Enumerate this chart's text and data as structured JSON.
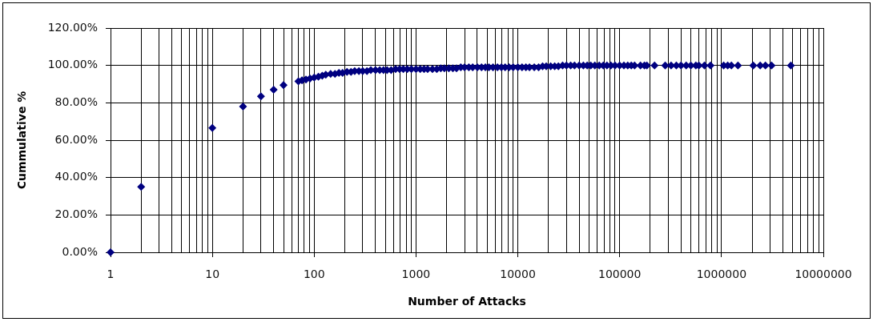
{
  "chart_data": {
    "type": "scatter",
    "xlabel": "Number of Attacks",
    "ylabel": "Cummulative %",
    "x": [
      1,
      2,
      10,
      20,
      30,
      40,
      50,
      70,
      76,
      83,
      91,
      100,
      110,
      120,
      130,
      145,
      160,
      175,
      190,
      210,
      230,
      250,
      275,
      300,
      330,
      360,
      400,
      440,
      480,
      520,
      570,
      630,
      690,
      750,
      820,
      900,
      1000,
      1100,
      1200,
      1300,
      1450,
      1600,
      1750,
      1900,
      2100,
      2300,
      2500,
      2750,
      3000,
      3300,
      3600,
      4000,
      4400,
      4800,
      5200,
      5700,
      6300,
      6900,
      7500,
      8200,
      9000,
      10000,
      11000,
      12000,
      13000,
      14500,
      16000,
      17500,
      19000,
      21000,
      23000,
      25000,
      27500,
      30000,
      33000,
      36000,
      40000,
      44000,
      48000,
      52000,
      57000,
      63000,
      69000,
      75000,
      82000,
      90000,
      100000,
      110000,
      120000,
      130000,
      140000,
      160000,
      175000,
      185000,
      220000,
      280000,
      320000,
      360000,
      400000,
      450000,
      500000,
      560000,
      600000,
      680000,
      780000,
      1050000,
      1150000,
      1250000,
      1450000,
      2050000,
      2400000,
      2700000,
      3100000,
      4800000
    ],
    "values": [
      0,
      35,
      66.5,
      78,
      83.5,
      87,
      89.5,
      91.5,
      92,
      92.5,
      93,
      93.5,
      94,
      94.5,
      95,
      95.5,
      95.5,
      96,
      96,
      96.5,
      96.5,
      97,
      97,
      97,
      97,
      97.5,
      97.5,
      97.5,
      97.5,
      97.5,
      97.5,
      98,
      98,
      98,
      98,
      98,
      98,
      98,
      98,
      98,
      98,
      98,
      98.5,
      98.5,
      98.5,
      98.5,
      98.5,
      99,
      99,
      99,
      99,
      99,
      99,
      99,
      99,
      99,
      99,
      99,
      99,
      99,
      99,
      99,
      99,
      99,
      99,
      99,
      99,
      99.5,
      99.5,
      99.5,
      99.5,
      99.5,
      100,
      100,
      100,
      100,
      100,
      100,
      100,
      100,
      100,
      100,
      100,
      100,
      100,
      100,
      100,
      100,
      100,
      100,
      100,
      100,
      100,
      100,
      100,
      100,
      100,
      100,
      100,
      100,
      100,
      100,
      100,
      100,
      100,
      100,
      100,
      100,
      100,
      100,
      100,
      100,
      100,
      100
    ],
    "color": "#000080",
    "marker": "diamond",
    "log": "x",
    "grid": true,
    "xlim": [
      1,
      10000000
    ],
    "ylim": [
      0,
      120
    ],
    "xticks": [
      1,
      {
        "value": 2,
        "label": null
      },
      {
        "value": 3,
        "label": null
      },
      {
        "value": 4,
        "label": null
      },
      {
        "value": 5,
        "label": null
      },
      {
        "value": 6,
        "label": null
      },
      {
        "value": 7,
        "label": null
      },
      {
        "value": 8,
        "label": null
      },
      {
        "value": 9,
        "label": null
      },
      10,
      {
        "value": 20,
        "label": null
      },
      {
        "value": 30,
        "label": null
      },
      {
        "value": 40,
        "label": null
      },
      {
        "value": 50,
        "label": null
      },
      {
        "value": 60,
        "label": null
      },
      {
        "value": 70,
        "label": null
      },
      {
        "value": 80,
        "label": null
      },
      {
        "value": 90,
        "label": null
      },
      100,
      {
        "value": 200,
        "label": null
      },
      {
        "value": 300,
        "label": null
      },
      {
        "value": 400,
        "label": null
      },
      {
        "value": 500,
        "label": null
      },
      {
        "value": 600,
        "label": null
      },
      {
        "value": 700,
        "label": null
      },
      {
        "value": 800,
        "label": null
      },
      {
        "value": 900,
        "label": null
      },
      1000,
      {
        "value": 2000,
        "label": null
      },
      {
        "value": 3000,
        "label": null
      },
      {
        "value": 4000,
        "label": null
      },
      {
        "value": 5000,
        "label": null
      },
      {
        "value": 6000,
        "label": null
      },
      {
        "value": 7000,
        "label": null
      },
      {
        "value": 8000,
        "label": null
      },
      {
        "value": 9000,
        "label": null
      },
      10000,
      {
        "value": 20000,
        "label": null
      },
      {
        "value": 30000,
        "label": null
      },
      {
        "value": 40000,
        "label": null
      },
      {
        "value": 50000,
        "label": null
      },
      {
        "value": 60000,
        "label": null
      },
      {
        "value": 70000,
        "label": null
      },
      {
        "value": 80000,
        "label": null
      },
      {
        "value": 90000,
        "label": null
      },
      100000,
      {
        "value": 200000,
        "label": null
      },
      {
        "value": 300000,
        "label": null
      },
      {
        "value": 400000,
        "label": null
      },
      {
        "value": 500000,
        "label": null
      },
      {
        "value": 600000,
        "label": null
      },
      {
        "value": 700000,
        "label": null
      },
      {
        "value": 800000,
        "label": null
      },
      {
        "value": 900000,
        "label": null
      },
      1000000,
      {
        "value": 2000000,
        "label": null
      },
      {
        "value": 3000000,
        "label": null
      },
      {
        "value": 4000000,
        "label": null
      },
      {
        "value": 5000000,
        "label": null
      },
      {
        "value": 6000000,
        "label": null
      },
      {
        "value": 7000000,
        "label": null
      },
      {
        "value": 8000000,
        "label": null
      },
      {
        "value": 9000000,
        "label": null
      },
      10000000
    ],
    "yticks": [
      {
        "value": 0,
        "label": "0.00%"
      },
      {
        "value": 20,
        "label": "20.00%"
      },
      {
        "value": 40,
        "label": "40.00%"
      },
      {
        "value": 60,
        "label": "60.00%"
      },
      {
        "value": 80,
        "label": "80.00%"
      },
      {
        "value": 100,
        "label": "100.00%"
      },
      {
        "value": 120,
        "label": "120.00%"
      }
    ]
  }
}
